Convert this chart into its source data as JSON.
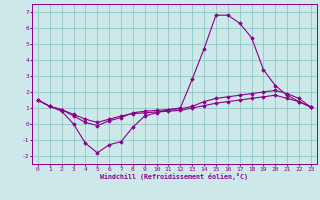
{
  "x": [
    0,
    1,
    2,
    3,
    4,
    5,
    6,
    7,
    8,
    9,
    10,
    11,
    12,
    13,
    14,
    15,
    16,
    17,
    18,
    19,
    20,
    21,
    22,
    23
  ],
  "line1": [
    1.5,
    1.1,
    0.8,
    0.0,
    -1.2,
    -1.8,
    -1.3,
    -1.1,
    -0.2,
    0.5,
    0.7,
    0.9,
    1.0,
    2.8,
    4.7,
    6.8,
    6.8,
    6.3,
    5.4,
    3.4,
    2.4,
    1.8,
    1.4,
    1.05
  ],
  "line2": [
    1.5,
    1.1,
    0.9,
    0.5,
    0.1,
    -0.1,
    0.2,
    0.4,
    0.7,
    0.8,
    0.85,
    0.9,
    0.95,
    1.1,
    1.4,
    1.6,
    1.7,
    1.8,
    1.9,
    2.0,
    2.1,
    1.9,
    1.6,
    1.05
  ],
  "line3": [
    1.5,
    1.1,
    0.9,
    0.6,
    0.3,
    0.1,
    0.3,
    0.5,
    0.65,
    0.7,
    0.75,
    0.8,
    0.85,
    1.0,
    1.15,
    1.3,
    1.4,
    1.5,
    1.6,
    1.7,
    1.8,
    1.6,
    1.4,
    1.05
  ],
  "background_color": "#cce8e8",
  "line_color": "#8b008b",
  "grid_color": "#99cccc",
  "xlabel": "Windchill (Refroidissement éolien,°C)",
  "ylim": [
    -2.5,
    7.5
  ],
  "xlim": [
    -0.5,
    23.5
  ],
  "yticks": [
    -2,
    -1,
    0,
    1,
    2,
    3,
    4,
    5,
    6,
    7
  ],
  "xticks": [
    0,
    1,
    2,
    3,
    4,
    5,
    6,
    7,
    8,
    9,
    10,
    11,
    12,
    13,
    14,
    15,
    16,
    17,
    18,
    19,
    20,
    21,
    22,
    23
  ]
}
